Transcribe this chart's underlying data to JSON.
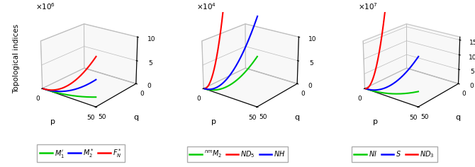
{
  "panels": [
    {
      "scale_text": "×10$^6$",
      "zlim": [
        0,
        10000000.0
      ],
      "zticks": [
        0,
        5000000,
        10000000
      ],
      "zticklabels": [
        "0",
        "5",
        "10"
      ],
      "lines": [
        {
          "label": "$M_1'$",
          "color": "#00cc00",
          "a": 4,
          "b": 2,
          "scale": 40000
        },
        {
          "label": "$M_2^*$",
          "color": "#0000ff",
          "a": 4,
          "b": 2,
          "scale": 110000
        },
        {
          "label": "$F_N^*$",
          "color": "#ff0000",
          "a": 4,
          "b": 2,
          "scale": 200000
        }
      ],
      "legend_labels": [
        "$M_1'$",
        "$M_2^*$",
        "$F_N^*$"
      ],
      "legend_colors": [
        "#00cc00",
        "#0000ff",
        "#ff0000"
      ]
    },
    {
      "scale_text": "×10$^4$",
      "zlim": [
        0,
        100000.0
      ],
      "zticks": [
        0,
        50000,
        100000
      ],
      "zticklabels": [
        "0",
        "5",
        "10"
      ],
      "lines": [
        {
          "label": "$^{nm}M_2$",
          "color": "#00cc00",
          "a": 4,
          "b": 2,
          "scale": 2000
        },
        {
          "label": "$ND_5$",
          "color": "#ff0000",
          "a": 4,
          "b": 2,
          "scale": 20000
        },
        {
          "label": "$NH$",
          "color": "#0000ff",
          "a": 4,
          "b": 2,
          "scale": 3500
        }
      ],
      "legend_labels": [
        "$^{nm}M_2$",
        "$ND_5$",
        "$NH$"
      ],
      "legend_colors": [
        "#00cc00",
        "#ff0000",
        "#0000ff"
      ]
    },
    {
      "scale_text": "×10$^7$",
      "zlim": [
        0,
        160000000.0
      ],
      "zticks": [
        0,
        50000000,
        100000000,
        150000000
      ],
      "zticklabels": [
        "0",
        "5",
        "10",
        "15"
      ],
      "lines": [
        {
          "label": "$NI$",
          "color": "#00cc00",
          "a": 4,
          "b": 2,
          "scale": 1000000
        },
        {
          "label": "$S$",
          "color": "#0000ff",
          "a": 4,
          "b": 2,
          "scale": 3200000
        },
        {
          "label": "$ND_3$",
          "color": "#ff0000",
          "a": 4,
          "b": 2,
          "scale": 30000000
        }
      ],
      "legend_labels": [
        "$NI$",
        "$S$",
        "$ND_3$"
      ],
      "legend_colors": [
        "#00cc00",
        "#0000ff",
        "#ff0000"
      ]
    }
  ],
  "p_max": 50,
  "q_max": 50,
  "elev": 22,
  "azim": -52,
  "xlabel": "p",
  "ylabel": "q",
  "main_ylabel": "Topological indices",
  "background": "#ffffff",
  "pane_color": "#f0f0f0",
  "grid_color": "#bbbbbb"
}
